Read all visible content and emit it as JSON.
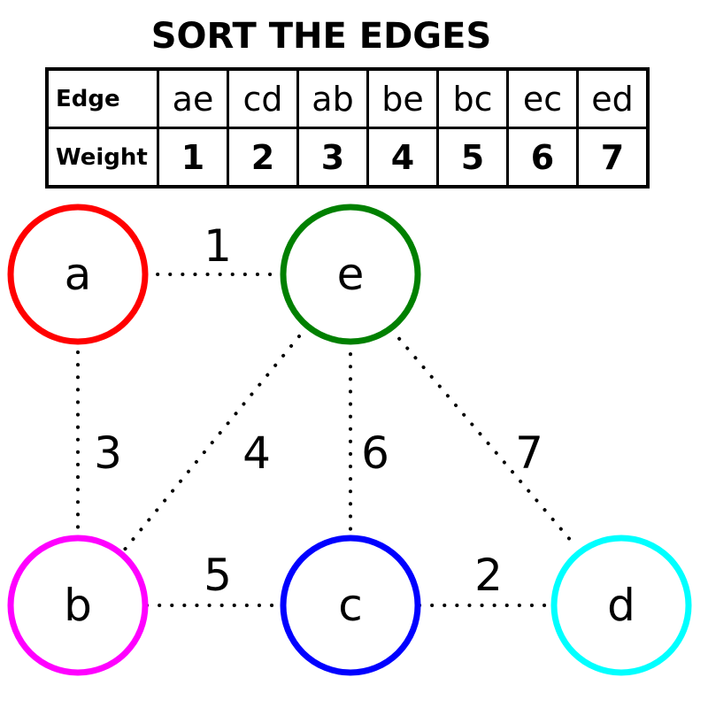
{
  "title": "SORT THE EDGES",
  "table": {
    "row_headers": [
      "Edge",
      "Weight"
    ],
    "edges": [
      "ae",
      "cd",
      "ab",
      "be",
      "bc",
      "ec",
      "ed"
    ],
    "weights": [
      "1",
      "2",
      "3",
      "4",
      "5",
      "6",
      "7"
    ]
  },
  "graph": {
    "nodes": [
      {
        "id": "a",
        "label": "a",
        "color": "#ff0000"
      },
      {
        "id": "e",
        "label": "e",
        "color": "#008000"
      },
      {
        "id": "b",
        "label": "b",
        "color": "#ff00ff"
      },
      {
        "id": "c",
        "label": "c",
        "color": "#0000ff"
      },
      {
        "id": "d",
        "label": "d",
        "color": "#00ffff"
      }
    ],
    "edges": [
      {
        "from": "a",
        "to": "e",
        "weight": "1"
      },
      {
        "from": "a",
        "to": "b",
        "weight": "3"
      },
      {
        "from": "e",
        "to": "b",
        "weight": "4"
      },
      {
        "from": "e",
        "to": "c",
        "weight": "6"
      },
      {
        "from": "e",
        "to": "d",
        "weight": "7"
      },
      {
        "from": "b",
        "to": "c",
        "weight": "5"
      },
      {
        "from": "c",
        "to": "d",
        "weight": "2"
      }
    ]
  }
}
